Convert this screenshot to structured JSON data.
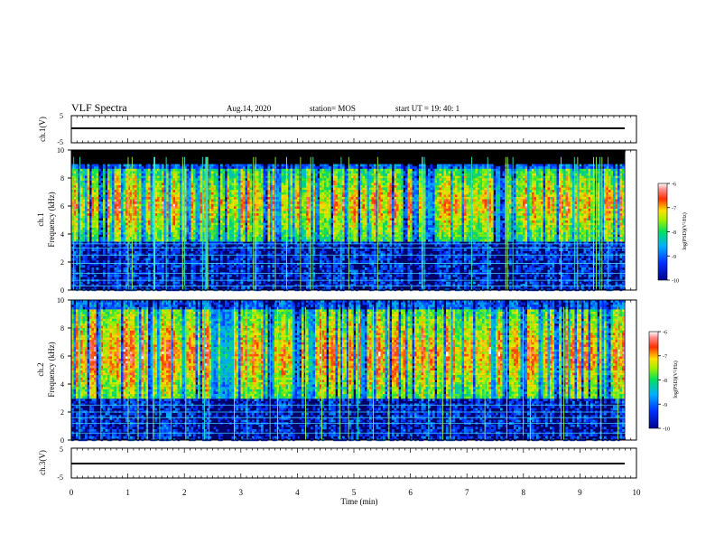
{
  "header": {
    "title": "VLF Spectra",
    "date": "Aug.14, 2020",
    "station": "station= MOS",
    "start": "start  UT =   19: 40: 1"
  },
  "chart_data": [
    {
      "type": "line",
      "name": "ch.1",
      "ylabel": "ch.1(V)",
      "ylim": [
        -5,
        5
      ],
      "ytick_labels": [
        "5",
        "-5"
      ],
      "xlim": [
        0,
        10
      ],
      "series": [
        {
          "x": [
            0,
            9.8
          ],
          "values": [
            0,
            0
          ]
        }
      ]
    },
    {
      "type": "heatmap",
      "name": "ch.1 spectrogram",
      "ylabel": "ch.1\nFrequency (kHz)",
      "ylim": [
        0,
        10
      ],
      "ytick_labels": [
        "0",
        "2",
        "4",
        "6",
        "8",
        "10"
      ],
      "xlim": [
        0,
        10
      ],
      "data_xmax": 9.8,
      "colorbar": {
        "label": "log(PSD)(V²/Hz)",
        "range": [
          -10,
          -6
        ],
        "tick_labels": [
          "-6",
          "-7",
          "-8",
          "-9",
          "-10"
        ]
      }
    },
    {
      "type": "heatmap",
      "name": "ch.2 spectrogram",
      "ylabel": "ch.2\nFrequency (kHz)",
      "ylim": [
        0,
        10
      ],
      "ytick_labels": [
        "0",
        "2",
        "4",
        "6",
        "8",
        "10"
      ],
      "xlim": [
        0,
        10
      ],
      "data_xmax": 9.8,
      "colorbar": {
        "label": "log(PSD)(V²/Hz)",
        "range": [
          -10,
          -6
        ],
        "tick_labels": [
          "-6",
          "-7",
          "-8",
          "-9",
          "-10"
        ]
      }
    },
    {
      "type": "line",
      "name": "ch.3",
      "ylabel": "ch.3(V)",
      "ylim": [
        -5,
        5
      ],
      "ytick_labels": [
        "5",
        "-5"
      ],
      "xlim": [
        0,
        10
      ],
      "series": [
        {
          "x": [
            0,
            9.8
          ],
          "values": [
            0,
            0
          ]
        }
      ]
    }
  ],
  "xaxis": {
    "label": "Time (min)",
    "tick_labels": [
      "0",
      "1",
      "2",
      "3",
      "4",
      "5",
      "6",
      "7",
      "8",
      "9",
      "10"
    ]
  }
}
